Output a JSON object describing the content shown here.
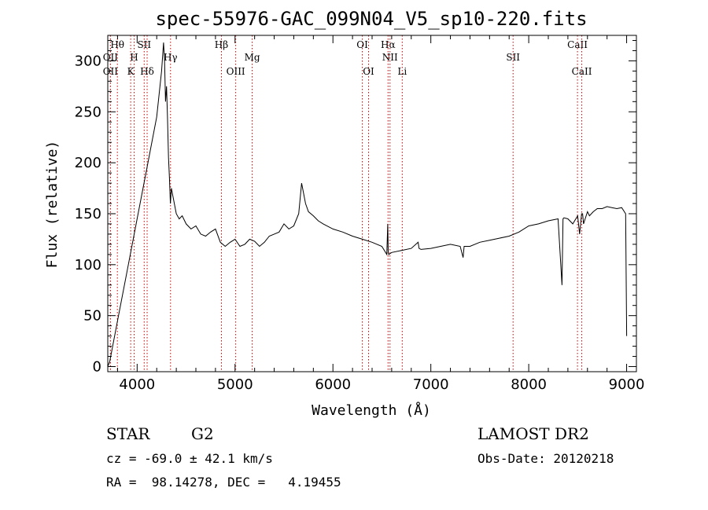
{
  "chart_data": {
    "type": "line",
    "title": "spec-55976-GAC_099N04_V5_sp10-220.fits",
    "xlabel": "Wavelength (Å)",
    "ylabel": "Flux (relative)",
    "xlim": [
      3700,
      9100
    ],
    "ylim": [
      -5,
      325
    ],
    "xticks": [
      4000,
      5000,
      6000,
      7000,
      8000,
      9000
    ],
    "yticks": [
      0,
      50,
      100,
      150,
      200,
      250,
      300
    ],
    "grid": false,
    "series": [
      {
        "x": [
          3700,
          3720,
          3800,
          3900,
          4000,
          4100,
          4200,
          4250,
          4270,
          4280,
          4290,
          4300,
          4310,
          4320,
          4330,
          4340,
          4350,
          4360,
          4380,
          4400,
          4430,
          4460,
          4500,
          4550,
          4600,
          4650,
          4700,
          4750,
          4800,
          4850,
          4900,
          4950,
          5000,
          5050,
          5100,
          5150,
          5200,
          5250,
          5300,
          5350,
          5400,
          5450,
          5500,
          5550,
          5600,
          5650,
          5680,
          5700,
          5720,
          5750,
          5800,
          5850,
          5900,
          6000,
          6100,
          6200,
          6300,
          6400,
          6500,
          6550,
          6560,
          6565,
          6570,
          6600,
          6700,
          6800,
          6870,
          6880,
          6900,
          7000,
          7100,
          7200,
          7300,
          7330,
          7340,
          7350,
          7400,
          7500,
          7600,
          7700,
          7800,
          7900,
          8000,
          8100,
          8200,
          8300,
          8340,
          8350,
          8360,
          8400,
          8450,
          8500,
          8520,
          8540,
          8550,
          8560,
          8600,
          8620,
          8660,
          8700,
          8750,
          8800,
          8850,
          8900,
          8950,
          8990,
          9000
        ],
        "y": [
          0,
          5,
          45,
          95,
          145,
          195,
          245,
          290,
          318,
          300,
          260,
          275,
          245,
          205,
          185,
          160,
          175,
          170,
          160,
          150,
          145,
          148,
          140,
          135,
          138,
          130,
          128,
          132,
          135,
          122,
          118,
          122,
          125,
          118,
          120,
          125,
          123,
          118,
          122,
          128,
          130,
          132,
          140,
          135,
          138,
          150,
          180,
          170,
          160,
          152,
          148,
          143,
          140,
          135,
          132,
          128,
          125,
          122,
          118,
          110,
          140,
          112,
          110,
          112,
          114,
          116,
          122,
          116,
          115,
          116,
          118,
          120,
          118,
          107,
          118,
          118,
          118,
          122,
          124,
          126,
          128,
          132,
          138,
          140,
          143,
          145,
          80,
          145,
          146,
          145,
          140,
          148,
          130,
          150,
          150,
          140,
          152,
          148,
          152,
          155,
          155,
          157,
          156,
          155,
          156,
          150,
          30
        ]
      }
    ],
    "spectral_lines": [
      {
        "label": "Hθ",
        "x": 3798,
        "row": 1
      },
      {
        "label": "OII",
        "x": 3727,
        "row": 2
      },
      {
        "label": "OII",
        "x": 3727,
        "row": 3
      },
      {
        "label": "SII",
        "x": 4072,
        "row": 1
      },
      {
        "label": "H",
        "x": 3969,
        "row": 2
      },
      {
        "label": "K",
        "x": 3934,
        "row": 3
      },
      {
        "label": "Hδ",
        "x": 4102,
        "row": 3
      },
      {
        "label": "Hγ",
        "x": 4341,
        "row": 2
      },
      {
        "label": "Hβ",
        "x": 4861,
        "row": 1
      },
      {
        "label": "Mg",
        "x": 5175,
        "row": 2
      },
      {
        "label": "OIII",
        "x": 5007,
        "row": 3
      },
      {
        "label": "OI",
        "x": 6300,
        "row": 1
      },
      {
        "label": "OI",
        "x": 6364,
        "row": 3
      },
      {
        "label": "Hα",
        "x": 6563,
        "row": 1
      },
      {
        "label": "NII",
        "x": 6583,
        "row": 2
      },
      {
        "label": "Li",
        "x": 6708,
        "row": 3
      },
      {
        "label": "SII",
        "x": 7840,
        "row": 2
      },
      {
        "label": "CaII",
        "x": 8498,
        "row": 1
      },
      {
        "label": "CaII",
        "x": 8542,
        "row": 3
      }
    ]
  },
  "info": {
    "class": "STAR",
    "subclass": "G2",
    "survey": "LAMOST DR2",
    "cz": "cz = -69.0 ± 42.1 km/s",
    "obsdate": "Obs-Date: 20120218",
    "radec": "RA =  98.14278, DEC =   4.19455"
  },
  "colors": {
    "spectrum": "#000000",
    "lines": "#cc0000",
    "axes": "#000000"
  }
}
